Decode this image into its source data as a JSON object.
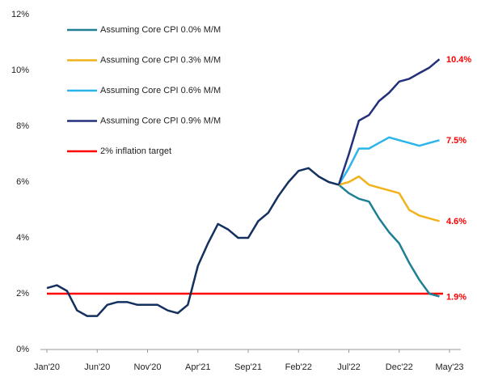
{
  "chart_data": {
    "type": "line",
    "categories": [
      "Jan'20",
      null,
      null,
      null,
      null,
      "Jun'20",
      null,
      null,
      null,
      null,
      "Nov'20",
      null,
      null,
      null,
      null,
      "Apr'21",
      null,
      null,
      null,
      null,
      "Sep'21",
      null,
      null,
      null,
      null,
      "Feb'22",
      null,
      null,
      null,
      null,
      "Jul'22",
      null,
      null,
      null,
      null,
      "Dec'22",
      null,
      null,
      null,
      null,
      "May'23"
    ],
    "series": [
      {
        "color": "#14305f",
        "values": [
          2.2,
          2.3,
          2.1,
          1.4,
          1.2,
          1.2,
          1.6,
          1.7,
          1.7,
          1.6,
          1.6,
          1.6,
          1.4,
          1.3,
          1.6,
          3.0,
          3.8,
          4.5,
          4.3,
          4.0,
          4.0,
          4.6,
          4.9,
          5.5,
          6.0,
          6.4,
          6.5,
          6.2,
          6.0,
          5.9,
          null,
          null,
          null,
          null,
          null,
          null,
          null,
          null,
          null,
          null,
          null
        ]
      },
      {
        "name": "Assuming Core CPI 0.0% M/M",
        "color": "#1f7f93",
        "values": [
          null,
          null,
          null,
          null,
          null,
          null,
          null,
          null,
          null,
          null,
          null,
          null,
          null,
          null,
          null,
          null,
          null,
          null,
          null,
          null,
          null,
          null,
          null,
          null,
          null,
          null,
          null,
          null,
          null,
          5.9,
          5.6,
          5.4,
          5.3,
          4.7,
          4.2,
          3.8,
          3.1,
          2.5,
          2.0,
          1.9,
          null
        ],
        "value_labels": [
          null,
          null,
          null,
          null,
          null,
          null,
          null,
          null,
          null,
          null,
          null,
          null,
          null,
          null,
          null,
          null,
          null,
          null,
          null,
          null,
          null,
          null,
          null,
          null,
          null,
          null,
          null,
          null,
          null,
          null,
          null,
          null,
          null,
          null,
          null,
          null,
          null,
          null,
          null,
          "1.9%",
          null
        ]
      },
      {
        "name": "Assuming Core CPI 0.3% M/M",
        "color": "#f2b21b",
        "values": [
          null,
          null,
          null,
          null,
          null,
          null,
          null,
          null,
          null,
          null,
          null,
          null,
          null,
          null,
          null,
          null,
          null,
          null,
          null,
          null,
          null,
          null,
          null,
          null,
          null,
          null,
          null,
          null,
          null,
          5.9,
          6.0,
          6.2,
          5.9,
          5.8,
          5.7,
          5.6,
          5.0,
          4.8,
          4.7,
          4.6,
          null
        ],
        "value_labels": [
          null,
          null,
          null,
          null,
          null,
          null,
          null,
          null,
          null,
          null,
          null,
          null,
          null,
          null,
          null,
          null,
          null,
          null,
          null,
          null,
          null,
          null,
          null,
          null,
          null,
          null,
          null,
          null,
          null,
          null,
          null,
          null,
          null,
          null,
          null,
          null,
          null,
          null,
          null,
          "4.6%",
          null
        ]
      },
      {
        "name": "Assuming Core CPI 0.6% M/M",
        "color": "#2bb5ea",
        "values": [
          null,
          null,
          null,
          null,
          null,
          null,
          null,
          null,
          null,
          null,
          null,
          null,
          null,
          null,
          null,
          null,
          null,
          null,
          null,
          null,
          null,
          null,
          null,
          null,
          null,
          null,
          null,
          null,
          null,
          5.9,
          6.5,
          7.2,
          7.2,
          7.4,
          7.6,
          7.5,
          7.4,
          7.3,
          7.4,
          7.5,
          null
        ],
        "value_labels": [
          null,
          null,
          null,
          null,
          null,
          null,
          null,
          null,
          null,
          null,
          null,
          null,
          null,
          null,
          null,
          null,
          null,
          null,
          null,
          null,
          null,
          null,
          null,
          null,
          null,
          null,
          null,
          null,
          null,
          null,
          null,
          null,
          null,
          null,
          null,
          null,
          null,
          null,
          null,
          "7.5%",
          null
        ]
      },
      {
        "name": "Assuming Core CPI 0.9% M/M",
        "color": "#23307a",
        "values": [
          null,
          null,
          null,
          null,
          null,
          null,
          null,
          null,
          null,
          null,
          null,
          null,
          null,
          null,
          null,
          null,
          null,
          null,
          null,
          null,
          null,
          null,
          null,
          null,
          null,
          null,
          null,
          null,
          null,
          5.9,
          7.0,
          8.2,
          8.4,
          8.9,
          9.2,
          9.6,
          9.7,
          9.9,
          10.1,
          10.4,
          null
        ],
        "value_labels": [
          null,
          null,
          null,
          null,
          null,
          null,
          null,
          null,
          null,
          null,
          null,
          null,
          null,
          null,
          null,
          null,
          null,
          null,
          null,
          null,
          null,
          null,
          null,
          null,
          null,
          null,
          null,
          null,
          null,
          null,
          null,
          null,
          null,
          null,
          null,
          null,
          null,
          null,
          null,
          "10.4%",
          null
        ]
      }
    ],
    "target": {
      "name": "2% inflation target",
      "value": 2,
      "color": "#ff0000"
    },
    "value_label_color": "#ff0000",
    "ylim": [
      0,
      12
    ],
    "yticks": [
      {
        "value": 0,
        "label": "0%"
      },
      {
        "value": 2,
        "label": "2%"
      },
      {
        "value": 4,
        "label": "4%"
      },
      {
        "value": 6,
        "label": "6%"
      },
      {
        "value": 8,
        "label": "8%"
      },
      {
        "value": 10,
        "label": "10%"
      },
      {
        "value": 12,
        "label": "12%"
      }
    ]
  }
}
